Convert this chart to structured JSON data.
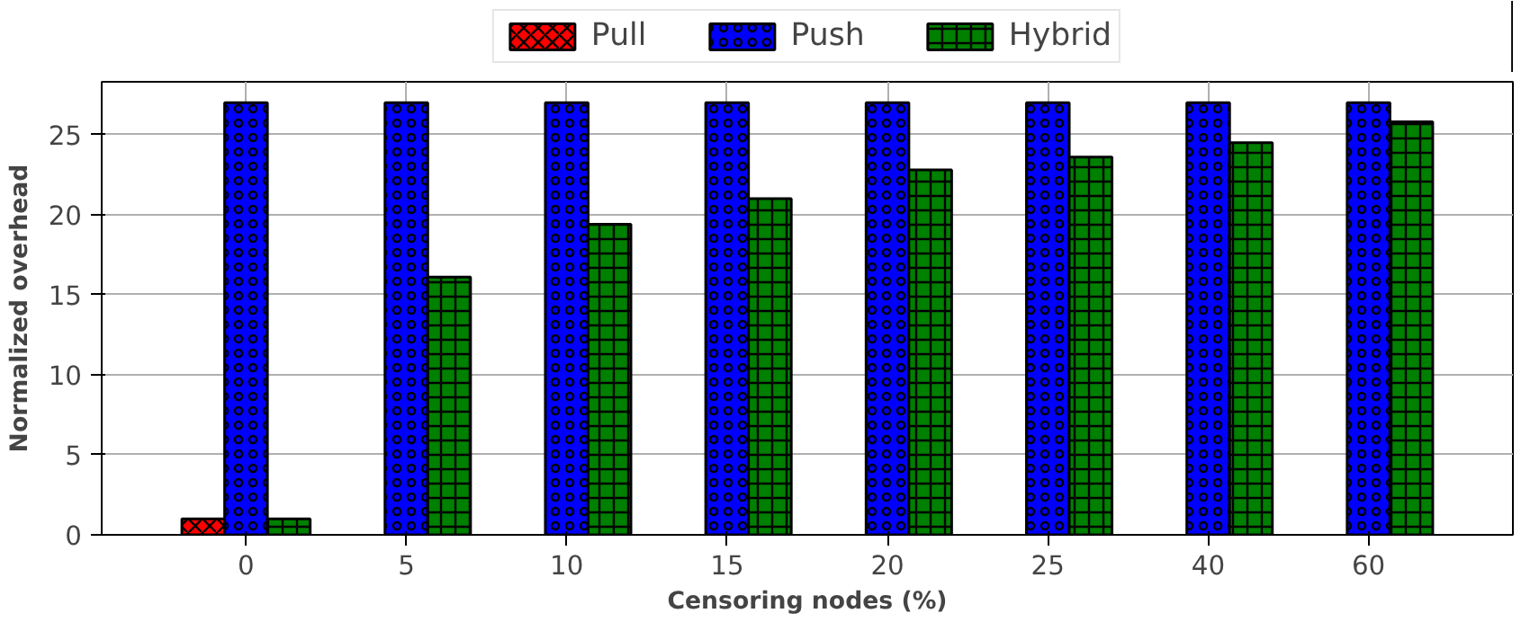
{
  "chart_data": {
    "type": "bar",
    "xlabel": "Censoring nodes (%)",
    "ylabel": "Normalized overhead",
    "categories": [
      "0",
      "5",
      "10",
      "15",
      "20",
      "25",
      "40",
      "60"
    ],
    "series": [
      {
        "name": "Pull",
        "color": "#ff0000",
        "values": [
          1,
          null,
          null,
          null,
          null,
          null,
          null,
          null
        ]
      },
      {
        "name": "Push",
        "color": "#0000ff",
        "values": [
          27,
          27,
          27,
          27,
          27,
          27,
          27,
          27
        ]
      },
      {
        "name": "Hybrid",
        "color": "#008000",
        "values": [
          1,
          16.1,
          19.4,
          21,
          22.8,
          23.6,
          24.5,
          25.8
        ]
      }
    ],
    "ylim": [
      0,
      28.3
    ],
    "yticks": [
      0,
      5,
      10,
      15,
      20,
      25
    ],
    "grid": true,
    "legend": "top"
  }
}
